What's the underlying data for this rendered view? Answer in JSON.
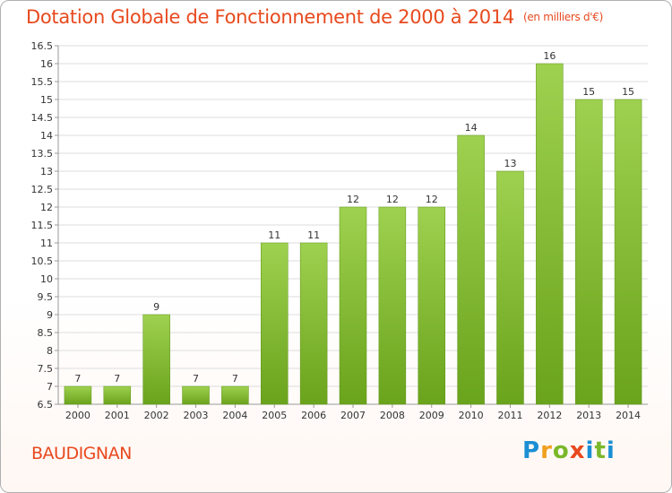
{
  "chart_data": {
    "type": "bar",
    "title": "Dotation Globale de Fonctionnement de 2000 à 2014",
    "subtitle": "(en milliers d'€)",
    "categories": [
      "2000",
      "2001",
      "2002",
      "2003",
      "2004",
      "2005",
      "2006",
      "2007",
      "2008",
      "2009",
      "2010",
      "2011",
      "2012",
      "2013",
      "2014"
    ],
    "values": [
      7,
      7,
      9,
      7,
      7,
      11,
      11,
      12,
      12,
      12,
      14,
      13,
      16,
      15,
      15
    ],
    "value_labels": [
      "7",
      "7",
      "9",
      "7",
      "7",
      "11",
      "11",
      "12",
      "12",
      "12",
      "14",
      "13",
      "16",
      "15",
      "15"
    ],
    "ylim": [
      6.5,
      16.5
    ],
    "yticks": [
      "6.5",
      "7",
      "7.5",
      "8",
      "8.5",
      "9",
      "9.5",
      "10",
      "10.5",
      "11",
      "11.5",
      "12",
      "12.5",
      "13",
      "13.5",
      "14",
      "14.5",
      "15",
      "15.5",
      "16",
      "16.5"
    ],
    "grid": true,
    "bar_color": "#8cc63f",
    "bar_color_dark": "#6aa31c"
  },
  "commune": "BAUDIGNAN",
  "brand": {
    "letters": [
      "P",
      "r",
      "o",
      "x",
      "i",
      "t",
      "i"
    ]
  }
}
